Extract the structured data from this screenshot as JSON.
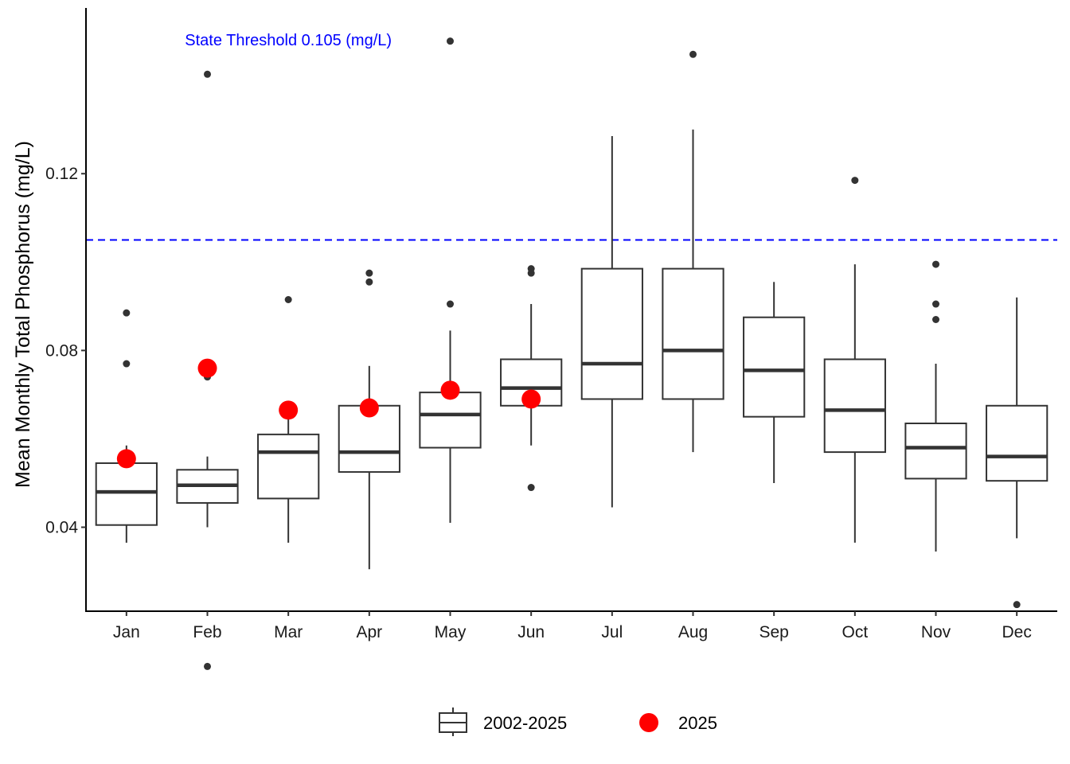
{
  "chart_data": {
    "type": "box",
    "ylabel": "Mean Monthly Total Phosphorus (mg/L)",
    "xlabel": "",
    "ylim": [
      0.021,
      0.1575
    ],
    "yticks": [
      0.04,
      0.08,
      0.12
    ],
    "ytick_labels": [
      "0.04",
      "0.08",
      "0.12"
    ],
    "categories": [
      "Jan",
      "Feb",
      "Mar",
      "Apr",
      "May",
      "Jun",
      "Jul",
      "Aug",
      "Sep",
      "Oct",
      "Nov",
      "Dec"
    ],
    "threshold": {
      "value": 0.105,
      "label": "State Threshold 0.105 (mg/L)",
      "color": "#0000ff"
    },
    "series": [
      {
        "name": "2002-2025",
        "kind": "box",
        "color": "#333333",
        "boxes": [
          {
            "month": "Jan",
            "whisker_low": 0.0365,
            "q1": 0.0405,
            "median": 0.048,
            "q3": 0.0545,
            "whisker_high": 0.0585,
            "outliers": [
              0.0885,
              0.077
            ]
          },
          {
            "month": "Feb",
            "whisker_low": 0.04,
            "q1": 0.0455,
            "median": 0.0495,
            "q3": 0.053,
            "whisker_high": 0.056,
            "outliers": [
              0.1425,
              0.074,
              0.0085
            ]
          },
          {
            "month": "Mar",
            "whisker_low": 0.0365,
            "q1": 0.0465,
            "median": 0.057,
            "q3": 0.061,
            "whisker_high": 0.066,
            "outliers": [
              0.0915
            ]
          },
          {
            "month": "Apr",
            "whisker_low": 0.0305,
            "q1": 0.0525,
            "median": 0.057,
            "q3": 0.0675,
            "whisker_high": 0.0765,
            "outliers": [
              0.0975,
              0.0955
            ]
          },
          {
            "month": "May",
            "whisker_low": 0.041,
            "q1": 0.058,
            "median": 0.0655,
            "q3": 0.0705,
            "whisker_high": 0.0845,
            "outliers": [
              0.15,
              0.0905
            ]
          },
          {
            "month": "Jun",
            "whisker_low": 0.0585,
            "q1": 0.0675,
            "median": 0.0715,
            "q3": 0.078,
            "whisker_high": 0.0905,
            "outliers": [
              0.0985,
              0.0975,
              0.049
            ]
          },
          {
            "month": "Jul",
            "whisker_low": 0.0445,
            "q1": 0.069,
            "median": 0.077,
            "q3": 0.0985,
            "whisker_high": 0.1285,
            "outliers": []
          },
          {
            "month": "Aug",
            "whisker_low": 0.057,
            "q1": 0.069,
            "median": 0.08,
            "q3": 0.0985,
            "whisker_high": 0.13,
            "outliers": [
              0.147
            ]
          },
          {
            "month": "Sep",
            "whisker_low": 0.05,
            "q1": 0.065,
            "median": 0.0755,
            "q3": 0.0875,
            "whisker_high": 0.0955,
            "outliers": []
          },
          {
            "month": "Oct",
            "whisker_low": 0.0365,
            "q1": 0.057,
            "median": 0.0665,
            "q3": 0.078,
            "whisker_high": 0.0995,
            "outliers": [
              0.1185
            ]
          },
          {
            "month": "Nov",
            "whisker_low": 0.0345,
            "q1": 0.051,
            "median": 0.058,
            "q3": 0.0635,
            "whisker_high": 0.077,
            "outliers": [
              0.0995,
              0.0905,
              0.087
            ]
          },
          {
            "month": "Dec",
            "whisker_low": 0.0375,
            "q1": 0.0505,
            "median": 0.056,
            "q3": 0.0675,
            "whisker_high": 0.092,
            "outliers": [
              0.0225
            ]
          }
        ]
      },
      {
        "name": "2025",
        "kind": "point",
        "color": "#ff0000",
        "values": [
          0.0555,
          0.076,
          0.0665,
          0.067,
          0.071,
          0.069,
          null,
          null,
          null,
          null,
          null,
          null
        ]
      }
    ],
    "legend": {
      "position": "bottom",
      "entries": [
        "2002-2025",
        "2025"
      ]
    },
    "grid": false
  }
}
